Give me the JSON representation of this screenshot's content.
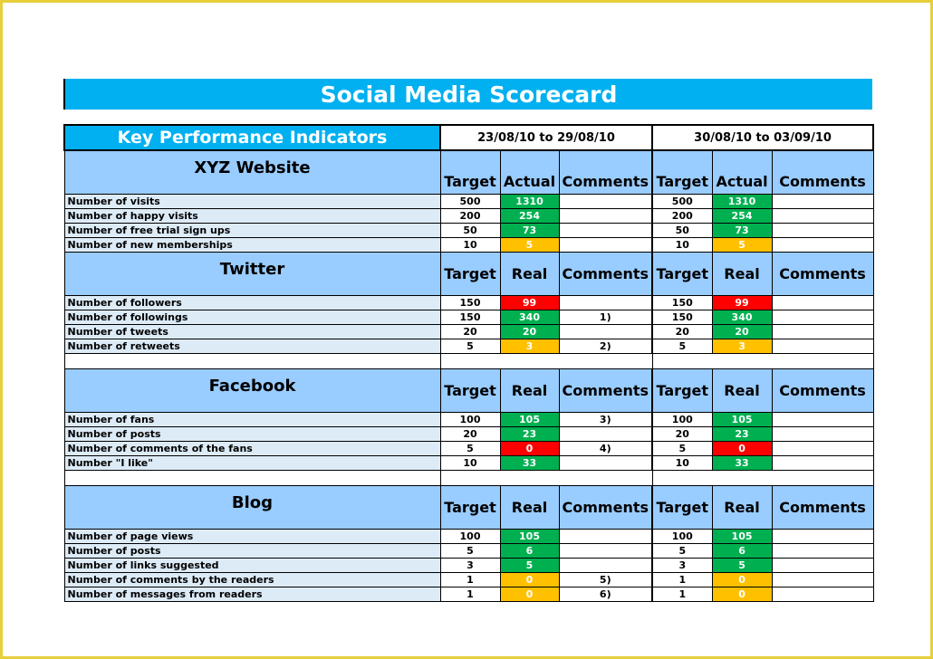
{
  "title": "Social Media Scorecard",
  "kpi_title": "Key Performance Indicators",
  "periods": [
    "23/08/10 to 29/08/10",
    "30/08/10 to 03/09/10"
  ],
  "sections": [
    {
      "name": "XYZ Website",
      "cols": [
        "Target",
        "Actual",
        "Comments",
        "Target",
        "Actual",
        "Comments"
      ],
      "rows": [
        {
          "label": "Number of visits",
          "t1": "500",
          "a1": "1310",
          "s1": "green",
          "c1": "",
          "t2": "500",
          "a2": "1310",
          "s2": "green",
          "c2": ""
        },
        {
          "label": "Number of happy visits",
          "t1": "200",
          "a1": "254",
          "s1": "green",
          "c1": "",
          "t2": "200",
          "a2": "254",
          "s2": "green",
          "c2": ""
        },
        {
          "label": "Number of free trial sign ups",
          "t1": "50",
          "a1": "73",
          "s1": "green",
          "c1": "",
          "t2": "50",
          "a2": "73",
          "s2": "green",
          "c2": ""
        },
        {
          "label": "Number of new memberships",
          "t1": "10",
          "a1": "5",
          "s1": "amber",
          "c1": "",
          "t2": "10",
          "a2": "5",
          "s2": "amber",
          "c2": ""
        }
      ]
    },
    {
      "name": "Twitter",
      "cols": [
        "Target",
        "Real",
        "Comments",
        "Target",
        "Real",
        "Comments"
      ],
      "rows": [
        {
          "label": "Number of followers",
          "t1": "150",
          "a1": "99",
          "s1": "red",
          "c1": "",
          "t2": "150",
          "a2": "99",
          "s2": "red",
          "c2": ""
        },
        {
          "label": "Number of followings",
          "t1": "150",
          "a1": "340",
          "s1": "green",
          "c1": "1)",
          "t2": "150",
          "a2": "340",
          "s2": "green",
          "c2": ""
        },
        {
          "label": "Number of tweets",
          "t1": "20",
          "a1": "20",
          "s1": "green",
          "c1": "",
          "t2": "20",
          "a2": "20",
          "s2": "green",
          "c2": ""
        },
        {
          "label": "Number of retweets",
          "t1": "5",
          "a1": "3",
          "s1": "amber",
          "c1": "2)",
          "t2": "5",
          "a2": "3",
          "s2": "amber",
          "c2": ""
        }
      ]
    },
    {
      "name": "Facebook",
      "cols": [
        "Target",
        "Real",
        "Comments",
        "Target",
        "Real",
        "Comments"
      ],
      "rows": [
        {
          "label": "Number of fans",
          "t1": "100",
          "a1": "105",
          "s1": "green",
          "c1": "3)",
          "t2": "100",
          "a2": "105",
          "s2": "green",
          "c2": ""
        },
        {
          "label": "Number of posts",
          "t1": "20",
          "a1": "23",
          "s1": "green",
          "c1": "",
          "t2": "20",
          "a2": "23",
          "s2": "green",
          "c2": ""
        },
        {
          "label": "Number of comments of the fans",
          "t1": "5",
          "a1": "0",
          "s1": "red",
          "c1": "4)",
          "t2": "5",
          "a2": "0",
          "s2": "red",
          "c2": ""
        },
        {
          "label": "Number \"I like\"",
          "t1": "10",
          "a1": "33",
          "s1": "green",
          "c1": "",
          "t2": "10",
          "a2": "33",
          "s2": "green",
          "c2": ""
        }
      ]
    },
    {
      "name": "Blog",
      "cols": [
        "Target",
        "Real",
        "Comments",
        "Target",
        "Real",
        "Comments"
      ],
      "rows": [
        {
          "label": "Number of page views",
          "t1": "100",
          "a1": "105",
          "s1": "green",
          "c1": "",
          "t2": "100",
          "a2": "105",
          "s2": "green",
          "c2": ""
        },
        {
          "label": "Number of posts",
          "t1": "5",
          "a1": "6",
          "s1": "green",
          "c1": "",
          "t2": "5",
          "a2": "6",
          "s2": "green",
          "c2": ""
        },
        {
          "label": "Number of links suggested",
          "t1": "3",
          "a1": "5",
          "s1": "green",
          "c1": "",
          "t2": "3",
          "a2": "5",
          "s2": "green",
          "c2": ""
        },
        {
          "label": "Number of comments by the readers",
          "t1": "1",
          "a1": "0",
          "s1": "amber",
          "c1": "5)",
          "t2": "1",
          "a2": "0",
          "s2": "amber",
          "c2": ""
        },
        {
          "label": "Number of messages from readers",
          "t1": "1",
          "a1": "0",
          "s1": "amber",
          "c1": "6)",
          "t2": "1",
          "a2": "0",
          "s2": "amber",
          "c2": ""
        }
      ]
    }
  ],
  "colors": {
    "title_bg": "#00b0f0",
    "header_bg": "#99ccff",
    "label_bg": "#ddebf7",
    "green": "#00b050",
    "red": "#ff0000",
    "amber": "#ffc000",
    "page_border": "#e6cf3a"
  }
}
